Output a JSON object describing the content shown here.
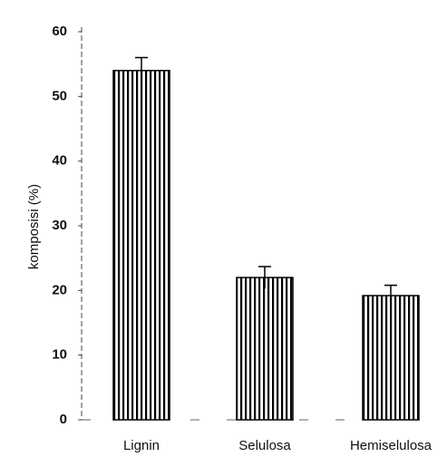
{
  "chart_data": {
    "type": "bar",
    "y_label": "komposisi (%)",
    "categories": [
      "Lignin",
      "Selulosa",
      "Hemiselulosa"
    ],
    "values": [
      54,
      22,
      19.2
    ],
    "errors": [
      2,
      1.7,
      1.6
    ],
    "color": "#000000",
    "ylim": [
      0,
      60
    ],
    "yticks": [
      0,
      10,
      20,
      30,
      40,
      50,
      60
    ]
  }
}
